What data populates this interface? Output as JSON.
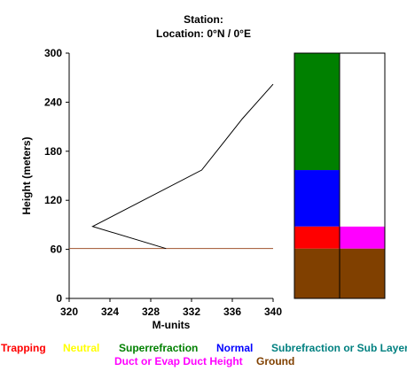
{
  "header": {
    "station": "Station:",
    "location": "Location:   0°N /   0°E"
  },
  "chart_data": {
    "type": "line",
    "xlabel": "M-units",
    "ylabel": "Height (meters)",
    "xlim": [
      320,
      340
    ],
    "ylim": [
      0,
      300
    ],
    "xticks": [
      "320",
      "324",
      "328",
      "332",
      "336",
      "340"
    ],
    "yticks": [
      "0",
      "60",
      "120",
      "180",
      "240",
      "300"
    ],
    "series": [
      {
        "color": "#000000",
        "x": [
          329.5,
          322.3,
          333.0,
          337.0,
          340.0
        ],
        "y": [
          61,
          88,
          157,
          220,
          262
        ]
      }
    ],
    "reference_line": {
      "y": 61,
      "color": "#a0522d"
    },
    "profile_bar": {
      "left": [
        {
          "from": 0,
          "to": 61,
          "color": "#804000"
        },
        {
          "from": 61,
          "to": 88,
          "color": "#ff0000"
        },
        {
          "from": 88,
          "to": 157,
          "color": "#0000ff"
        },
        {
          "from": 157,
          "to": 300,
          "color": "#008000"
        }
      ],
      "right": [
        {
          "from": 0,
          "to": 61,
          "color": "#804000"
        },
        {
          "from": 61,
          "to": 88,
          "color": "#ff00ff"
        },
        {
          "from": 88,
          "to": 300,
          "color": "#ffffff"
        }
      ]
    }
  },
  "legend": {
    "row1": [
      {
        "label": "Trapping",
        "color": "#ff0000"
      },
      {
        "label": "Neutral",
        "color": "#ffff00"
      },
      {
        "label": "Superrefraction",
        "color": "#008000"
      },
      {
        "label": "Normal",
        "color": "#0000ff"
      },
      {
        "label": "Subrefraction or Sub Layer",
        "color": "#008080"
      }
    ],
    "row2": [
      {
        "label": "Duct or Evap Duct Height",
        "color": "#ff00ff"
      },
      {
        "label": "Ground",
        "color": "#804000"
      }
    ]
  }
}
